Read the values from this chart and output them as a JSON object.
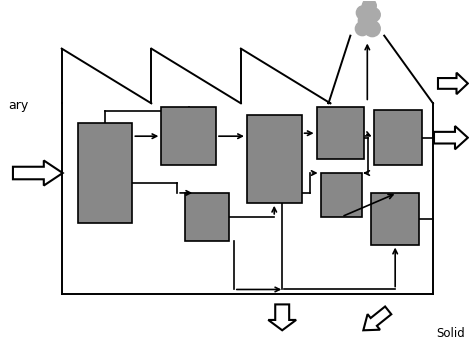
{
  "bg_color": "#ffffff",
  "box_color": "#888888",
  "box_edge": "#000000",
  "boundary_color": "#000000",
  "smoke_color": "#aaaaaa",
  "text_color": "#000000",
  "label_ary": "ary",
  "label_solid": "Solid",
  "lw_boundary": 1.4,
  "lw_arrow": 1.2,
  "lw_hollow": 1.5
}
